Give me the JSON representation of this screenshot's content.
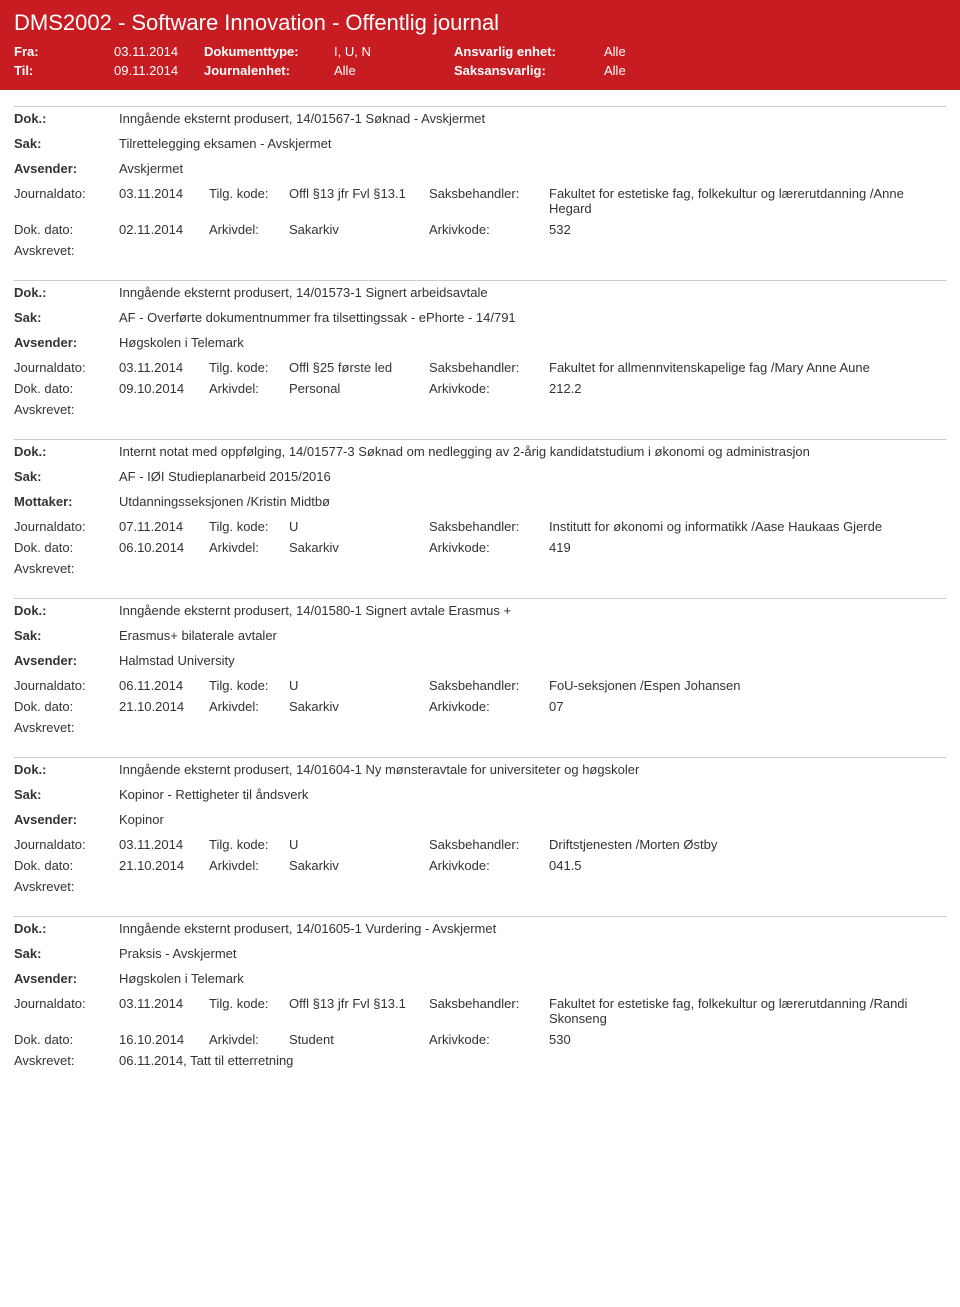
{
  "header": {
    "title": "DMS2002 - Software Innovation - Offentlig journal",
    "fra_label": "Fra:",
    "fra_value": "03.11.2014",
    "til_label": "Til:",
    "til_value": "09.11.2014",
    "doktype_label": "Dokumenttype:",
    "doktype_value": "I, U, N",
    "journalenhet_label": "Journalenhet:",
    "journalenhet_value": "Alle",
    "ansvarlig_label": "Ansvarlig enhet:",
    "ansvarlig_value": "Alle",
    "saksansvarlig_label": "Saksansvarlig:",
    "saksansvarlig_value": "Alle"
  },
  "labels": {
    "dok": "Dok.:",
    "sak": "Sak:",
    "avsender": "Avsender:",
    "mottaker": "Mottaker:",
    "journaldato": "Journaldato:",
    "dokdato": "Dok. dato:",
    "tilgkode": "Tilg. kode:",
    "arkivdel": "Arkivdel:",
    "saksbehandler": "Saksbehandler:",
    "arkivkode": "Arkivkode:",
    "avskrevet": "Avskrevet:"
  },
  "entries": [
    {
      "dok": "Inngående eksternt produsert, 14/01567-1 Søknad - Avskjermet",
      "sak": "Tilrettelegging eksamen - Avskjermet",
      "party_label": "Avsender:",
      "party": "Avskjermet",
      "journaldato": "03.11.2014",
      "tilgkode": "Offl §13 jfr Fvl §13.1",
      "saksbehandler": "Fakultet for estetiske fag, folkekultur og lærerutdanning /Anne Hegard",
      "dokdato": "02.11.2014",
      "arkivdel": "Sakarkiv",
      "arkivkode": "532",
      "avskrevet": ""
    },
    {
      "dok": "Inngående eksternt produsert, 14/01573-1 Signert arbeidsavtale",
      "sak": "AF - Overførte dokumentnummer fra tilsettingssak - ePhorte - 14/791",
      "party_label": "Avsender:",
      "party": "Høgskolen i Telemark",
      "journaldato": "03.11.2014",
      "tilgkode": "Offl §25 første led",
      "saksbehandler": "Fakultet for allmennvitenskapelige fag /Mary Anne Aune",
      "dokdato": "09.10.2014",
      "arkivdel": "Personal",
      "arkivkode": "212.2",
      "avskrevet": ""
    },
    {
      "dok": "Internt notat med oppfølging, 14/01577-3 Søknad om nedlegging av 2-årig kandidatstudium i økonomi og administrasjon",
      "sak": "AF - IØI Studieplanarbeid 2015/2016",
      "party_label": "Mottaker:",
      "party": "Utdanningsseksjonen /Kristin Midtbø",
      "journaldato": "07.11.2014",
      "tilgkode": "U",
      "saksbehandler": "Institutt for økonomi og informatikk /Aase Haukaas Gjerde",
      "dokdato": "06.10.2014",
      "arkivdel": "Sakarkiv",
      "arkivkode": "419",
      "avskrevet": ""
    },
    {
      "dok": "Inngående eksternt produsert, 14/01580-1 Signert avtale Erasmus +",
      "sak": "Erasmus+ bilaterale avtaler",
      "party_label": "Avsender:",
      "party": "Halmstad University",
      "journaldato": "06.11.2014",
      "tilgkode": "U",
      "saksbehandler": "FoU-seksjonen /Espen Johansen",
      "dokdato": "21.10.2014",
      "arkivdel": "Sakarkiv",
      "arkivkode": "07",
      "avskrevet": ""
    },
    {
      "dok": "Inngående eksternt produsert, 14/01604-1 Ny mønsteravtale for universiteter og høgskoler",
      "sak": "Kopinor - Rettigheter til åndsverk",
      "party_label": "Avsender:",
      "party": "Kopinor",
      "journaldato": "03.11.2014",
      "tilgkode": "U",
      "saksbehandler": "Driftstjenesten /Morten Østby",
      "dokdato": "21.10.2014",
      "arkivdel": "Sakarkiv",
      "arkivkode": "041.5",
      "avskrevet": ""
    },
    {
      "dok": "Inngående eksternt produsert, 14/01605-1 Vurdering - Avskjermet",
      "sak": "Praksis - Avskjermet",
      "party_label": "Avsender:",
      "party": "Høgskolen i Telemark",
      "journaldato": "03.11.2014",
      "tilgkode": "Offl §13 jfr Fvl §13.1",
      "saksbehandler": "Fakultet for estetiske fag, folkekultur og lærerutdanning /Randi Skonseng",
      "dokdato": "16.10.2014",
      "arkivdel": "Student",
      "arkivkode": "530",
      "avskrevet": "06.11.2014, Tatt til etterretning"
    }
  ]
}
